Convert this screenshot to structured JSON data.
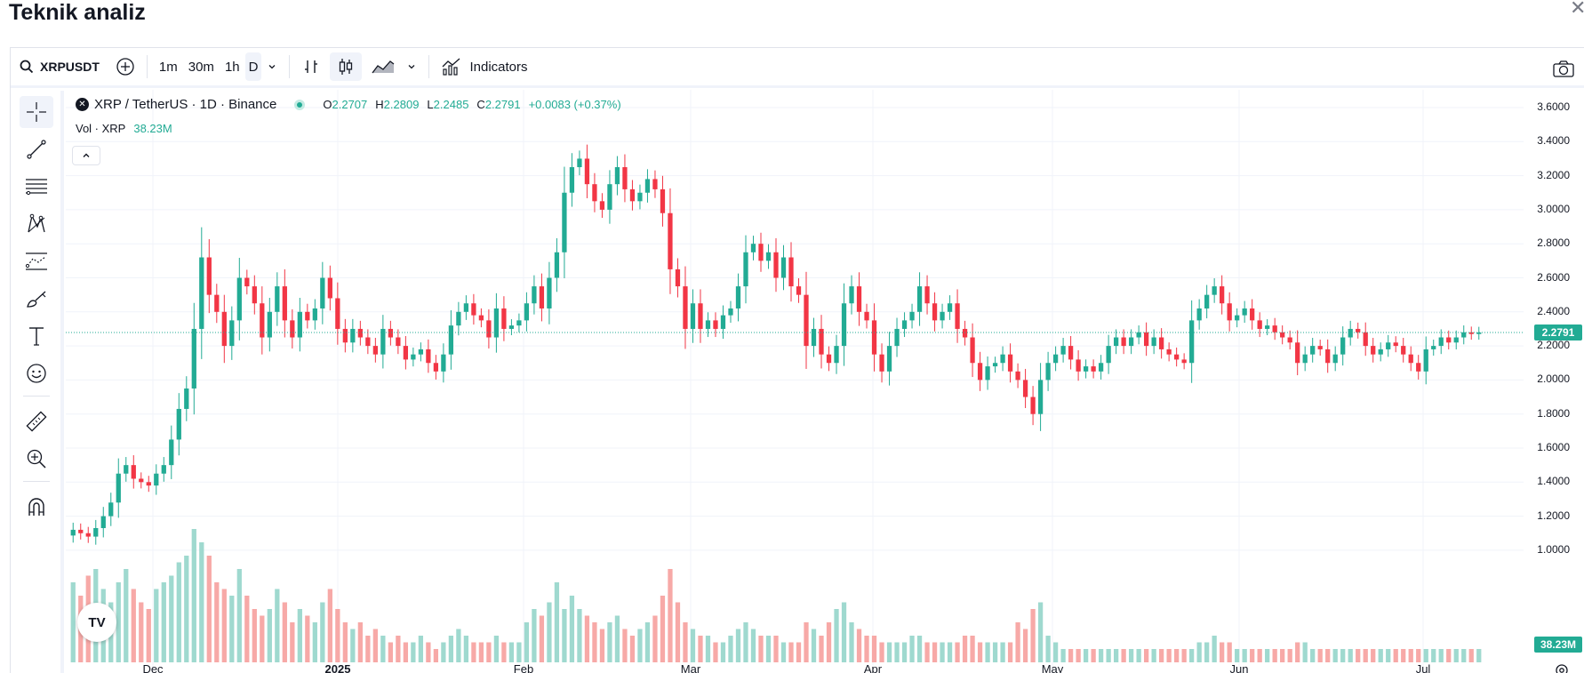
{
  "page_title": "Teknik analiz",
  "toolbar": {
    "symbol": "XRPUSDT",
    "intervals": [
      "1m",
      "30m",
      "1h",
      "D"
    ],
    "active_interval": "D",
    "indicators_label": "Indicators"
  },
  "legend": {
    "title": "XRP / TetherUS · 1D · Binance",
    "open_label": "O",
    "open": "2.2707",
    "high_label": "H",
    "high": "2.2809",
    "low_label": "L",
    "low": "2.2485",
    "close_label": "C",
    "close": "2.2791",
    "change": "+0.0083 (+0.37%)",
    "vol_label": "Vol · XRP",
    "vol_value": "38.23M"
  },
  "price_axis": {
    "labels": [
      "3.6000",
      "3.4000",
      "3.2000",
      "3.0000",
      "2.8000",
      "2.6000",
      "2.4000",
      "2.2000",
      "2.0000",
      "1.8000",
      "1.6000",
      "1.4000",
      "1.2000",
      "1.0000"
    ],
    "last_price": "2.2791",
    "last_volume": "38.23M"
  },
  "time_axis": {
    "labels": [
      "Dec",
      "2025",
      "Feb",
      "Mar",
      "Apr",
      "May",
      "Jun",
      "Jul"
    ]
  },
  "logo_text": "TV",
  "colors": {
    "up": "#22ab94",
    "down": "#f23645",
    "up_vol": "#9fd9cf",
    "down_vol": "#f7a9a7"
  },
  "chart_data": {
    "type": "candlestick",
    "symbol": "XRP / TetherUS",
    "interval": "1D",
    "exchange": "Binance",
    "ylim": [
      0.92,
      3.66
    ],
    "last_price": 2.2791,
    "x_ticks": [
      "Dec",
      "2025",
      "Feb",
      "Mar",
      "Apr",
      "May",
      "Jun",
      "Jul"
    ],
    "y_ticks": [
      3.6,
      3.4,
      3.2,
      3.0,
      2.8,
      2.6,
      2.4,
      2.2,
      2.0,
      1.8,
      1.6,
      1.4,
      1.2,
      1.0
    ],
    "close_series": [
      1.12,
      1.1,
      1.08,
      1.13,
      1.2,
      1.28,
      1.45,
      1.5,
      1.42,
      1.4,
      1.38,
      1.45,
      1.5,
      1.65,
      1.83,
      1.95,
      2.3,
      2.72,
      2.5,
      2.4,
      2.2,
      2.35,
      2.6,
      2.55,
      2.45,
      2.25,
      2.4,
      2.55,
      2.35,
      2.25,
      2.4,
      2.35,
      2.42,
      2.6,
      2.48,
      2.3,
      2.22,
      2.3,
      2.25,
      2.2,
      2.15,
      2.3,
      2.25,
      2.2,
      2.12,
      2.15,
      2.18,
      2.1,
      2.05,
      2.15,
      2.32,
      2.4,
      2.45,
      2.38,
      2.35,
      2.25,
      2.42,
      2.3,
      2.32,
      2.35,
      2.45,
      2.55,
      2.42,
      2.6,
      2.75,
      3.1,
      3.25,
      3.3,
      3.15,
      3.05,
      3.0,
      3.15,
      3.25,
      3.12,
      3.05,
      3.1,
      3.18,
      3.12,
      2.98,
      2.65,
      2.55,
      2.3,
      2.45,
      2.3,
      2.35,
      2.3,
      2.38,
      2.42,
      2.55,
      2.75,
      2.8,
      2.7,
      2.75,
      2.6,
      2.72,
      2.55,
      2.5,
      2.2,
      2.3,
      2.15,
      2.1,
      2.2,
      2.45,
      2.55,
      2.4,
      2.35,
      2.15,
      2.05,
      2.2,
      2.3,
      2.35,
      2.4,
      2.55,
      2.45,
      2.35,
      2.4,
      2.45,
      2.3,
      2.25,
      2.1,
      2.0,
      2.08,
      2.1,
      2.15,
      2.05,
      2.0,
      1.9,
      1.8,
      2.0,
      2.1,
      2.15,
      2.2,
      2.12,
      2.05,
      2.08,
      2.05,
      2.1,
      2.2,
      2.25,
      2.2,
      2.25,
      2.28,
      2.2,
      2.25,
      2.18,
      2.15,
      2.12,
      2.1,
      2.35,
      2.42,
      2.5,
      2.55,
      2.45,
      2.35,
      2.38,
      2.42,
      2.35,
      2.3,
      2.32,
      2.28,
      2.25,
      2.22,
      2.1,
      2.15,
      2.2,
      2.18,
      2.1,
      2.15,
      2.25,
      2.3,
      2.28,
      2.2,
      2.15,
      2.18,
      2.22,
      2.2,
      2.15,
      2.1,
      2.05,
      2.18,
      2.2,
      2.25,
      2.22,
      2.25,
      2.28,
      2.27,
      2.2791
    ],
    "volume_series": [
      0.6,
      0.5,
      0.65,
      0.7,
      0.55,
      0.45,
      0.6,
      0.7,
      0.55,
      0.45,
      0.4,
      0.55,
      0.6,
      0.65,
      0.75,
      0.8,
      1.0,
      0.9,
      0.8,
      0.6,
      0.55,
      0.5,
      0.7,
      0.5,
      0.4,
      0.35,
      0.4,
      0.55,
      0.45,
      0.3,
      0.4,
      0.35,
      0.3,
      0.45,
      0.55,
      0.4,
      0.3,
      0.25,
      0.3,
      0.2,
      0.25,
      0.2,
      0.15,
      0.2,
      0.15,
      0.15,
      0.2,
      0.15,
      0.1,
      0.15,
      0.2,
      0.25,
      0.2,
      0.15,
      0.15,
      0.15,
      0.2,
      0.15,
      0.15,
      0.15,
      0.3,
      0.4,
      0.35,
      0.45,
      0.6,
      0.4,
      0.5,
      0.4,
      0.35,
      0.3,
      0.25,
      0.3,
      0.35,
      0.25,
      0.2,
      0.25,
      0.3,
      0.35,
      0.5,
      0.7,
      0.45,
      0.3,
      0.25,
      0.2,
      0.2,
      0.15,
      0.15,
      0.2,
      0.25,
      0.3,
      0.25,
      0.2,
      0.2,
      0.2,
      0.15,
      0.15,
      0.15,
      0.3,
      0.25,
      0.2,
      0.3,
      0.4,
      0.45,
      0.3,
      0.25,
      0.2,
      0.2,
      0.15,
      0.15,
      0.15,
      0.15,
      0.2,
      0.2,
      0.15,
      0.15,
      0.15,
      0.15,
      0.15,
      0.2,
      0.2,
      0.15,
      0.15,
      0.15,
      0.15,
      0.15,
      0.3,
      0.25,
      0.4,
      0.45,
      0.2,
      0.15,
      0.1,
      0.1,
      0.1,
      0.1,
      0.1,
      0.1,
      0.1,
      0.1,
      0.1,
      0.1,
      0.1,
      0.1,
      0.1,
      0.1,
      0.1,
      0.1,
      0.1,
      0.1,
      0.15,
      0.15,
      0.2,
      0.15,
      0.15,
      0.1,
      0.1,
      0.1,
      0.1,
      0.1,
      0.1,
      0.1,
      0.1,
      0.15,
      0.15,
      0.1,
      0.1,
      0.1,
      0.1,
      0.1,
      0.1,
      0.1,
      0.1,
      0.1,
      0.1,
      0.1,
      0.1,
      0.1,
      0.1,
      0.1,
      0.1,
      0.1,
      0.1,
      0.1,
      0.1,
      0.1,
      0.1,
      0.1,
      0.1,
      0.1,
      0.08
    ]
  }
}
